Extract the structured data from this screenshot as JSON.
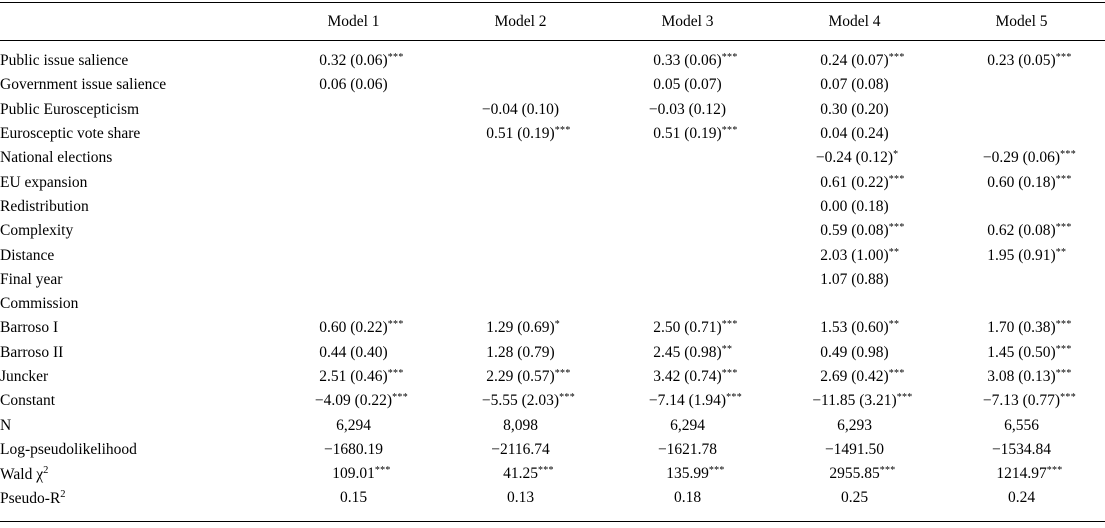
{
  "colors": {
    "text": "#000000",
    "background": "#ffffff",
    "rule": "#000000"
  },
  "table": {
    "columns": [
      "Model 1",
      "Model 2",
      "Model 3",
      "Model 4",
      "Model 5"
    ],
    "rows": [
      {
        "label": "Public issue salience",
        "label_sup": "",
        "cells": [
          {
            "v": "0.32 (0.06)",
            "s": "***"
          },
          {
            "v": "",
            "s": ""
          },
          {
            "v": "0.33 (0.06)",
            "s": "***"
          },
          {
            "v": "0.24 (0.07)",
            "s": "***"
          },
          {
            "v": "0.23 (0.05)",
            "s": "***"
          }
        ]
      },
      {
        "label": "Government issue salience",
        "label_sup": "",
        "cells": [
          {
            "v": "0.06 (0.06)",
            "s": ""
          },
          {
            "v": "",
            "s": ""
          },
          {
            "v": "0.05 (0.07)",
            "s": ""
          },
          {
            "v": "0.07 (0.08)",
            "s": ""
          },
          {
            "v": "",
            "s": ""
          }
        ]
      },
      {
        "label": "Public Euroscepticism",
        "label_sup": "",
        "cells": [
          {
            "v": "",
            "s": ""
          },
          {
            "v": "−0.04 (0.10)",
            "s": ""
          },
          {
            "v": "−0.03 (0.12)",
            "s": ""
          },
          {
            "v": "0.30 (0.20)",
            "s": ""
          },
          {
            "v": "",
            "s": ""
          }
        ]
      },
      {
        "label": "Eurosceptic vote share",
        "label_sup": "",
        "cells": [
          {
            "v": "",
            "s": ""
          },
          {
            "v": "0.51 (0.19)",
            "s": "***"
          },
          {
            "v": "0.51 (0.19)",
            "s": "***"
          },
          {
            "v": "0.04 (0.24)",
            "s": ""
          },
          {
            "v": "",
            "s": ""
          }
        ]
      },
      {
        "label": "National elections",
        "label_sup": "",
        "cells": [
          {
            "v": "",
            "s": ""
          },
          {
            "v": "",
            "s": ""
          },
          {
            "v": "",
            "s": ""
          },
          {
            "v": "−0.24 (0.12)",
            "s": "*"
          },
          {
            "v": "−0.29 (0.06)",
            "s": "***"
          }
        ]
      },
      {
        "label": "EU expansion",
        "label_sup": "",
        "cells": [
          {
            "v": "",
            "s": ""
          },
          {
            "v": "",
            "s": ""
          },
          {
            "v": "",
            "s": ""
          },
          {
            "v": "0.61 (0.22)",
            "s": "***"
          },
          {
            "v": "0.60 (0.18)",
            "s": "***"
          }
        ]
      },
      {
        "label": "Redistribution",
        "label_sup": "",
        "cells": [
          {
            "v": "",
            "s": ""
          },
          {
            "v": "",
            "s": ""
          },
          {
            "v": "",
            "s": ""
          },
          {
            "v": "0.00 (0.18)",
            "s": ""
          },
          {
            "v": "",
            "s": ""
          }
        ]
      },
      {
        "label": "Complexity",
        "label_sup": "",
        "cells": [
          {
            "v": "",
            "s": ""
          },
          {
            "v": "",
            "s": ""
          },
          {
            "v": "",
            "s": ""
          },
          {
            "v": "0.59 (0.08)",
            "s": "***"
          },
          {
            "v": "0.62 (0.08)",
            "s": "***"
          }
        ]
      },
      {
        "label": "Distance",
        "label_sup": "",
        "cells": [
          {
            "v": "",
            "s": ""
          },
          {
            "v": "",
            "s": ""
          },
          {
            "v": "",
            "s": ""
          },
          {
            "v": "2.03 (1.00)",
            "s": "**"
          },
          {
            "v": "1.95 (0.91)",
            "s": "**"
          }
        ]
      },
      {
        "label": "Final year",
        "label_sup": "",
        "cells": [
          {
            "v": "",
            "s": ""
          },
          {
            "v": "",
            "s": ""
          },
          {
            "v": "",
            "s": ""
          },
          {
            "v": "1.07 (0.88)",
            "s": ""
          },
          {
            "v": "",
            "s": ""
          }
        ]
      },
      {
        "label": "Commission",
        "label_sup": "",
        "cells": [
          {
            "v": "",
            "s": ""
          },
          {
            "v": "",
            "s": ""
          },
          {
            "v": "",
            "s": ""
          },
          {
            "v": "",
            "s": ""
          },
          {
            "v": "",
            "s": ""
          }
        ]
      },
      {
        "label": "Barroso I",
        "label_sup": "",
        "cells": [
          {
            "v": "0.60 (0.22)",
            "s": "***"
          },
          {
            "v": "1.29 (0.69)",
            "s": "*"
          },
          {
            "v": "2.50 (0.71)",
            "s": "***"
          },
          {
            "v": "1.53 (0.60)",
            "s": "**"
          },
          {
            "v": "1.70 (0.38)",
            "s": "***"
          }
        ]
      },
      {
        "label": "Barroso II",
        "label_sup": "",
        "cells": [
          {
            "v": "0.44 (0.40)",
            "s": ""
          },
          {
            "v": "1.28 (0.79)",
            "s": ""
          },
          {
            "v": "2.45 (0.98)",
            "s": "**"
          },
          {
            "v": "0.49 (0.98)",
            "s": ""
          },
          {
            "v": "1.45 (0.50)",
            "s": "***"
          }
        ]
      },
      {
        "label": "Juncker",
        "label_sup": "",
        "cells": [
          {
            "v": "2.51 (0.46)",
            "s": "***"
          },
          {
            "v": "2.29 (0.57)",
            "s": "***"
          },
          {
            "v": "3.42 (0.74)",
            "s": "***"
          },
          {
            "v": "2.69 (0.42)",
            "s": "***"
          },
          {
            "v": "3.08 (0.13)",
            "s": "***"
          }
        ]
      },
      {
        "label": "Constant",
        "label_sup": "",
        "cells": [
          {
            "v": "−4.09 (0.22)",
            "s": "***"
          },
          {
            "v": "−5.55 (2.03)",
            "s": "***"
          },
          {
            "v": "−7.14 (1.94)",
            "s": "***"
          },
          {
            "v": "−11.85 (3.21)",
            "s": "***"
          },
          {
            "v": "−7.13 (0.77)",
            "s": "***"
          }
        ]
      },
      {
        "label": "N",
        "label_sup": "",
        "cells": [
          {
            "v": "6,294",
            "s": ""
          },
          {
            "v": "8,098",
            "s": ""
          },
          {
            "v": "6,294",
            "s": ""
          },
          {
            "v": "6,293",
            "s": ""
          },
          {
            "v": "6,556",
            "s": ""
          }
        ]
      },
      {
        "label": "Log-pseudolikelihood",
        "label_sup": "",
        "cells": [
          {
            "v": "−1680.19",
            "s": ""
          },
          {
            "v": "−2116.74",
            "s": ""
          },
          {
            "v": "−1621.78",
            "s": ""
          },
          {
            "v": "−1491.50",
            "s": ""
          },
          {
            "v": "−1534.84",
            "s": ""
          }
        ]
      },
      {
        "label": "Wald χ",
        "label_sup": "2",
        "cells": [
          {
            "v": "109.01",
            "s": "***"
          },
          {
            "v": "41.25",
            "s": "***"
          },
          {
            "v": "135.99",
            "s": "***"
          },
          {
            "v": "2955.85",
            "s": "***"
          },
          {
            "v": "1214.97",
            "s": "***"
          }
        ]
      },
      {
        "label": "Pseudo-R",
        "label_sup": "2",
        "cells": [
          {
            "v": "0.15",
            "s": ""
          },
          {
            "v": "0.13",
            "s": ""
          },
          {
            "v": "0.18",
            "s": ""
          },
          {
            "v": "0.25",
            "s": ""
          },
          {
            "v": "0.24",
            "s": ""
          }
        ]
      }
    ]
  }
}
